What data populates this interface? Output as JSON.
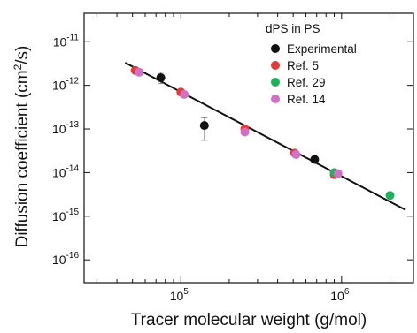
{
  "chart_data": {
    "type": "scatter",
    "title": "",
    "xlabel": "Tracer molecular weight (g/mol)",
    "ylabel_main": "Diffusion coefficient (cm",
    "ylabel_exp": "2",
    "ylabel_tail": "/s)",
    "x_scale": "log",
    "y_scale": "log",
    "xlim": [
      25000,
      2800000
    ],
    "ylim": [
      3e-17,
      4.5e-11
    ],
    "x_ticks": [
      {
        "base": "10",
        "exp": "5",
        "value": 100000
      },
      {
        "base": "10",
        "exp": "6",
        "value": 1000000
      }
    ],
    "y_ticks": [
      {
        "base": "10",
        "exp": "-11",
        "value": 1e-11
      },
      {
        "base": "10",
        "exp": "-12",
        "value": 1e-12
      },
      {
        "base": "10",
        "exp": "-13",
        "value": 1e-13
      },
      {
        "base": "10",
        "exp": "-14",
        "value": 1e-14
      },
      {
        "base": "10",
        "exp": "-15",
        "value": 1e-15
      },
      {
        "base": "10",
        "exp": "-16",
        "value": 1e-16
      }
    ],
    "legend": {
      "title": "dPS in PS",
      "placement": "top-right",
      "entries": [
        {
          "label": "Experimental",
          "color": "#111111"
        },
        {
          "label": "Ref. 5",
          "color": "#e8393a"
        },
        {
          "label": "Ref. 29",
          "color": "#20b25a"
        },
        {
          "label": "Ref. 14",
          "color": "#d26fc6"
        }
      ]
    },
    "series": [
      {
        "name": "Experimental",
        "color": "#111111",
        "points": [
          {
            "x": 75000,
            "y": 1.5e-12,
            "err_low": 1.1e-12,
            "err_high": 2e-12
          },
          {
            "x": 140000,
            "y": 1.2e-13,
            "err_low": 5.5e-14,
            "err_high": 1.8e-13
          },
          {
            "x": 680000,
            "y": 2e-14
          }
        ]
      },
      {
        "name": "Ref. 5",
        "color": "#e8393a",
        "points": [
          {
            "x": 52000,
            "y": 2.2e-12
          },
          {
            "x": 100000,
            "y": 7e-13
          },
          {
            "x": 250000,
            "y": 1e-13
          },
          {
            "x": 510000,
            "y": 2.8e-14
          },
          {
            "x": 900000,
            "y": 9e-15
          }
        ]
      },
      {
        "name": "Ref. 29",
        "color": "#20b25a",
        "points": [
          {
            "x": 900000,
            "y": 1e-14
          },
          {
            "x": 2000000,
            "y": 3e-15
          }
        ]
      },
      {
        "name": "Ref. 14",
        "color": "#d26fc6",
        "points": [
          {
            "x": 55000,
            "y": 2e-12
          },
          {
            "x": 105000,
            "y": 6.2e-13
          },
          {
            "x": 250000,
            "y": 8.5e-14
          },
          {
            "x": 520000,
            "y": 2.6e-14
          },
          {
            "x": 950000,
            "y": 9.5e-15
          }
        ]
      }
    ],
    "fit_line": {
      "color": "#111111",
      "points": [
        {
          "x": 45000,
          "y": 3.3e-12
        },
        {
          "x": 2500000,
          "y": 1.4e-15
        }
      ]
    },
    "grid": false
  }
}
